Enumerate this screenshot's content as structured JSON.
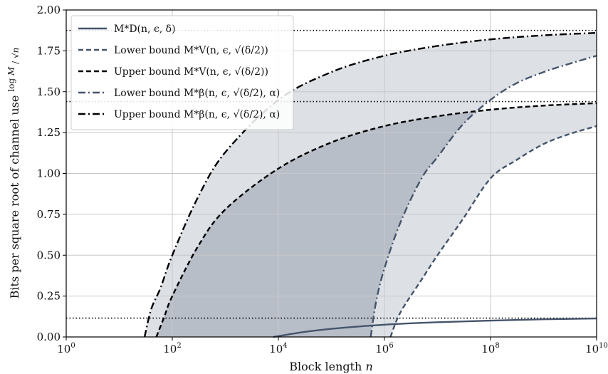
{
  "chart_data": {
    "type": "line",
    "xscale": "log",
    "xlim": [
      1,
      10000000000
    ],
    "ylim": [
      0,
      2.0
    ],
    "xlabel": "Block length n",
    "ylabel": "Bits per square root of channel use log M / √n",
    "x_ticks": [
      {
        "base": "10",
        "exp": "0",
        "value": 1
      },
      {
        "base": "10",
        "exp": "2",
        "value": 100
      },
      {
        "base": "10",
        "exp": "4",
        "value": 10000
      },
      {
        "base": "10",
        "exp": "6",
        "value": 1000000
      },
      {
        "base": "10",
        "exp": "8",
        "value": 100000000
      },
      {
        "base": "10",
        "exp": "10",
        "value": 10000000000
      }
    ],
    "y_ticks": [
      "0.00",
      "0.25",
      "0.50",
      "0.75",
      "1.00",
      "1.25",
      "1.50",
      "1.75",
      "2.00"
    ],
    "grid": true,
    "legend_position": "top-left",
    "asymptotes": [
      0.115,
      1.44,
      1.875
    ],
    "colors": {
      "slate": "#44546b",
      "black": "#000000",
      "fill_light": "#dde0e5",
      "fill_dark": "#b8bec8"
    },
    "series": [
      {
        "name": "M*_D(n, ε, δ)",
        "legend_label": "M*D(n, ϵ, δ)",
        "style": "solid",
        "color": "#44546b",
        "x": [
          8000,
          10000,
          30000,
          100000,
          1000000,
          10000000,
          100000000,
          1000000000,
          10000000000
        ],
        "y": [
          0.0,
          0.005,
          0.03,
          0.05,
          0.075,
          0.09,
          0.1,
          0.108,
          0.113
        ]
      },
      {
        "name": "Lower bound M*_V(n, ε, √(δ/2))",
        "legend_label": "Lower bound M*V(n, ϵ, √(δ/2))",
        "style": "dashed",
        "color": "#44546b",
        "x": [
          1300000,
          2000000,
          5000000,
          10000000,
          30000000,
          100000000,
          300000000,
          1000000000,
          3000000000,
          10000000000
        ],
        "y": [
          0.0,
          0.15,
          0.35,
          0.5,
          0.72,
          0.97,
          1.08,
          1.18,
          1.24,
          1.29
        ]
      },
      {
        "name": "Upper bound M*_V(n, ε, √(δ/2))",
        "legend_label": "Upper bound M*V(n, ϵ, √(δ/2))",
        "style": "dashed",
        "color": "#000000",
        "x": [
          50,
          70,
          100,
          300,
          1000,
          10000,
          100000,
          1000000,
          10000000,
          100000000,
          1000000000,
          10000000000
        ],
        "y": [
          0.0,
          0.12,
          0.25,
          0.55,
          0.78,
          1.03,
          1.19,
          1.29,
          1.35,
          1.39,
          1.415,
          1.43
        ]
      },
      {
        "name": "Lower bound M*_β(n, ε, √(δ/2), α)",
        "legend_label": "Lower bound M*β(n, ϵ, √(δ/2), α)",
        "style": "dashdot",
        "color": "#44546b",
        "x": [
          550000,
          700000,
          1000000,
          2000000,
          5000000,
          10000000,
          30000000,
          100000000,
          300000000,
          1000000000,
          3000000000,
          10000000000
        ],
        "y": [
          0.0,
          0.22,
          0.42,
          0.7,
          0.97,
          1.1,
          1.3,
          1.45,
          1.55,
          1.62,
          1.67,
          1.72
        ]
      },
      {
        "name": "Upper bound M*_β(n, ε, √(δ/2), α)",
        "legend_label": "Upper bound M*β(n, ϵ, √(δ/2), α)",
        "style": "dashdot",
        "color": "#000000",
        "x": [
          30,
          40,
          60,
          100,
          300,
          1000,
          10000,
          100000,
          1000000,
          10000000,
          100000000,
          1000000000,
          10000000000
        ],
        "y": [
          0.0,
          0.17,
          0.3,
          0.5,
          0.85,
          1.13,
          1.45,
          1.62,
          1.72,
          1.78,
          1.82,
          1.845,
          1.86
        ]
      }
    ]
  }
}
